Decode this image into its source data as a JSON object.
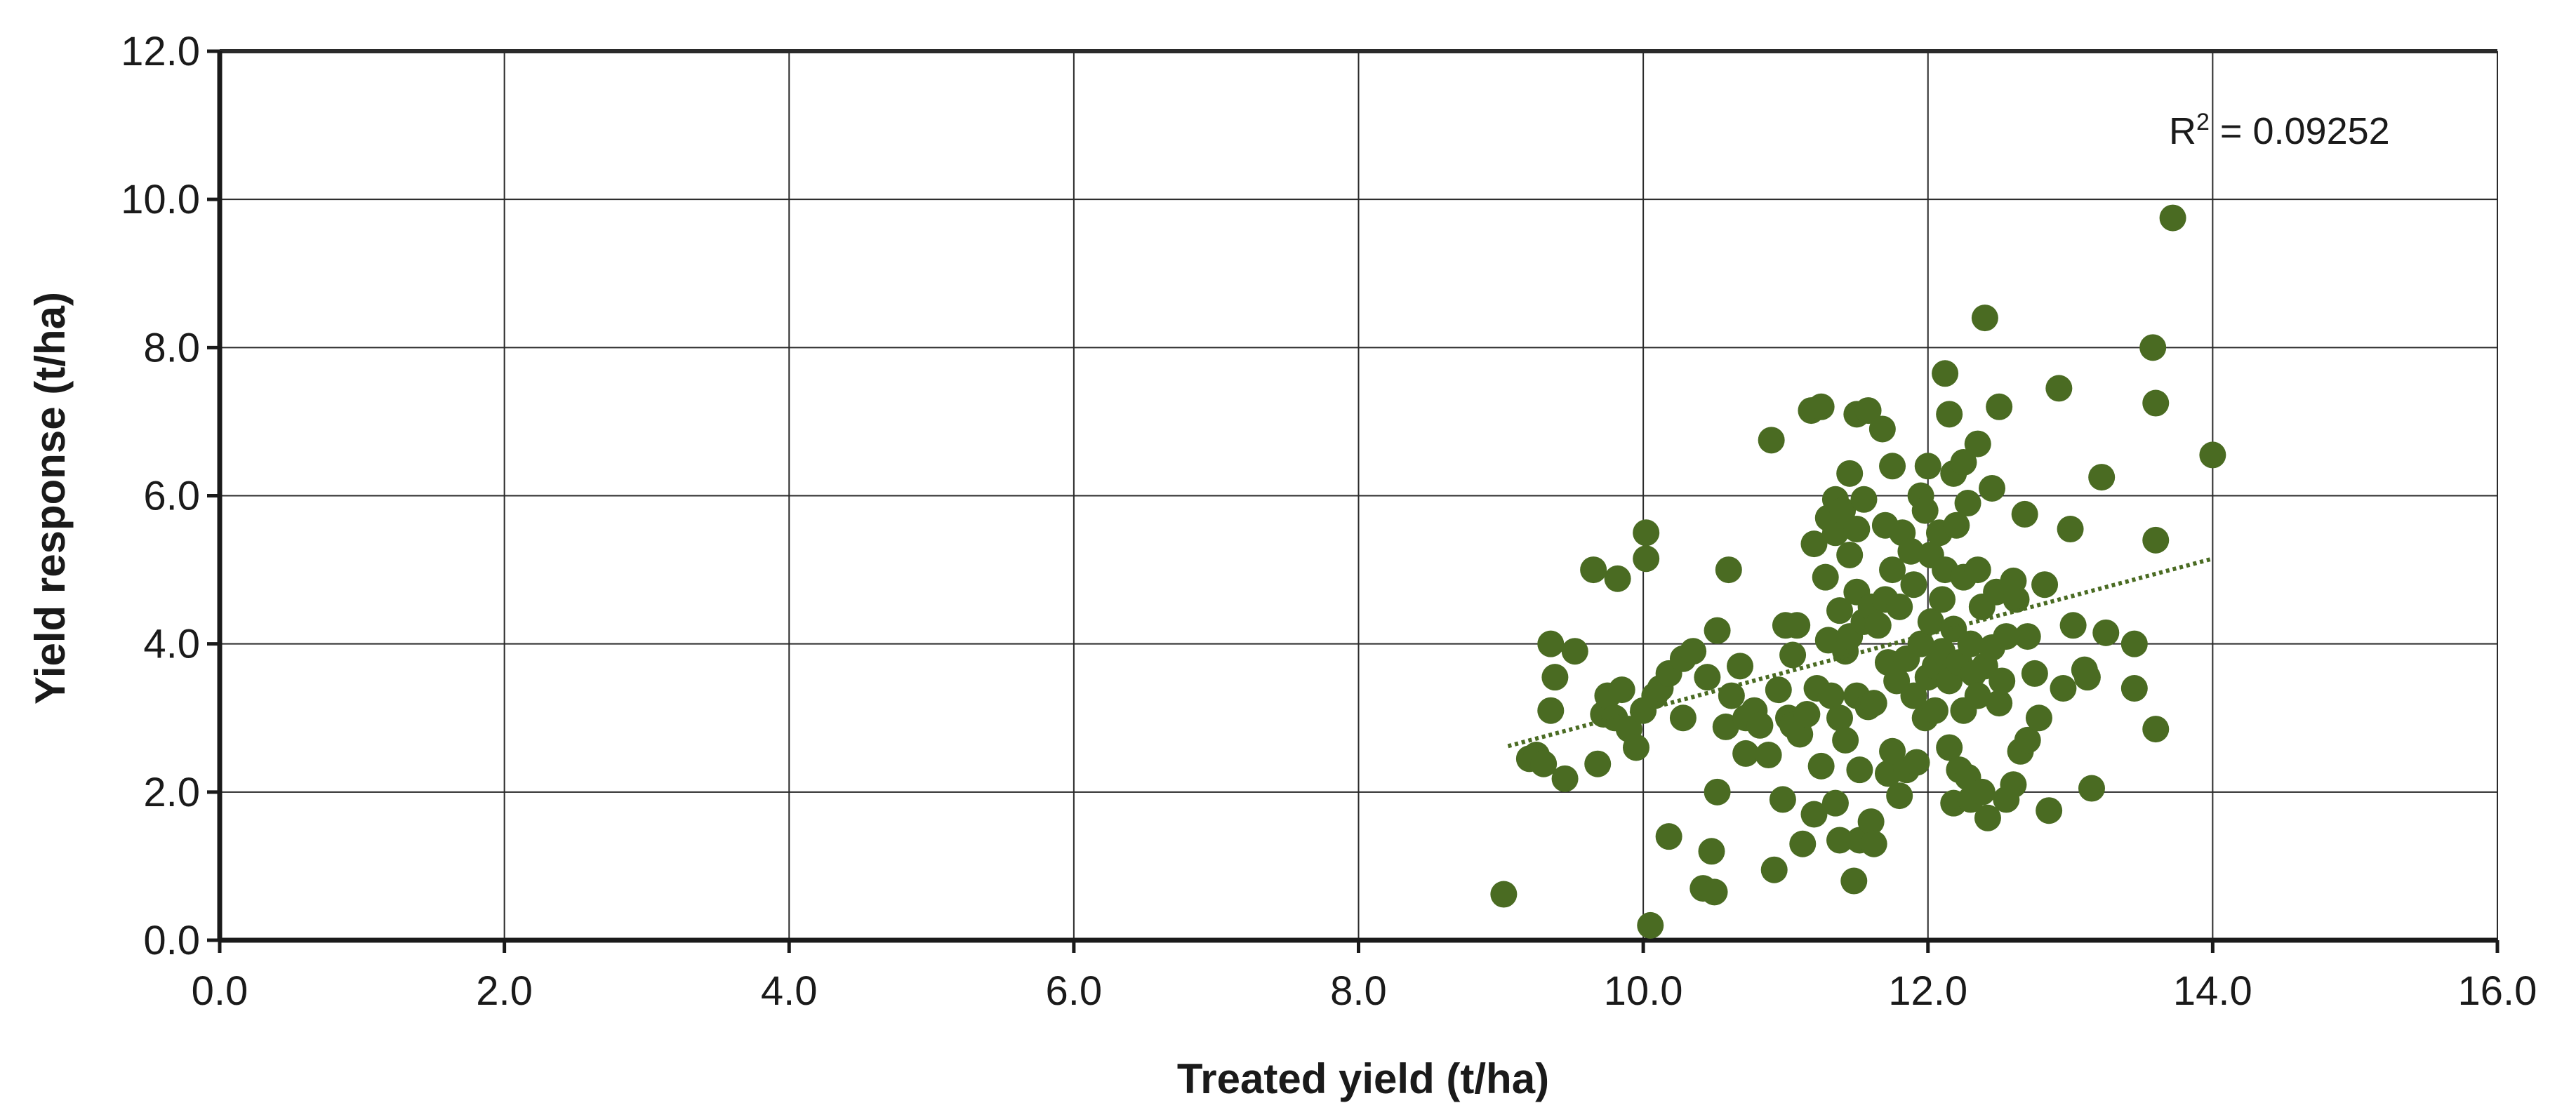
{
  "chart_data": {
    "type": "scatter",
    "title": "",
    "xlabel": "Treated yield (t/ha)",
    "ylabel": "Yield response (t/ha)",
    "xlim": [
      0,
      16
    ],
    "ylim": [
      0,
      12
    ],
    "x_ticks": [
      "0.0",
      "2.0",
      "4.0",
      "6.0",
      "8.0",
      "10.0",
      "12.0",
      "14.0",
      "16.0"
    ],
    "y_ticks": [
      "0.0",
      "2.0",
      "4.0",
      "6.0",
      "8.0",
      "10.0",
      "12.0"
    ],
    "grid": true,
    "marker_color": "#4a6b22",
    "trendline": {
      "style": "dotted",
      "color": "#4a6b22",
      "points": [
        [
          9.05,
          2.62
        ],
        [
          14.0,
          5.15
        ]
      ],
      "r2_prefix": "R",
      "r2_exponent": "2",
      "r2_value": " = 0.09252"
    },
    "points": [
      [
        9.02,
        0.62
      ],
      [
        9.2,
        2.45
      ],
      [
        9.25,
        2.5
      ],
      [
        9.3,
        2.38
      ],
      [
        9.35,
        4.0
      ],
      [
        9.35,
        3.1
      ],
      [
        9.38,
        3.55
      ],
      [
        9.45,
        2.18
      ],
      [
        9.52,
        3.9
      ],
      [
        9.65,
        5.0
      ],
      [
        9.68,
        2.38
      ],
      [
        9.72,
        3.05
      ],
      [
        9.75,
        3.3
      ],
      [
        9.8,
        3.0
      ],
      [
        9.82,
        4.88
      ],
      [
        9.85,
        3.38
      ],
      [
        9.9,
        2.85
      ],
      [
        9.95,
        2.6
      ],
      [
        10.0,
        3.1
      ],
      [
        10.02,
        5.5
      ],
      [
        10.02,
        5.15
      ],
      [
        10.05,
        0.2
      ],
      [
        10.08,
        3.3
      ],
      [
        10.12,
        3.4
      ],
      [
        10.18,
        3.6
      ],
      [
        10.18,
        1.4
      ],
      [
        10.28,
        3.8
      ],
      [
        10.28,
        3.0
      ],
      [
        10.35,
        3.9
      ],
      [
        10.42,
        0.7
      ],
      [
        10.45,
        3.55
      ],
      [
        10.48,
        1.2
      ],
      [
        10.5,
        0.65
      ],
      [
        10.52,
        4.18
      ],
      [
        10.52,
        2.0
      ],
      [
        10.58,
        2.88
      ],
      [
        10.6,
        5.0
      ],
      [
        10.62,
        3.3
      ],
      [
        10.68,
        3.7
      ],
      [
        10.72,
        3.0
      ],
      [
        10.72,
        2.52
      ],
      [
        10.78,
        3.1
      ],
      [
        10.82,
        2.9
      ],
      [
        10.88,
        2.5
      ],
      [
        10.9,
        6.75
      ],
      [
        10.92,
        0.95
      ],
      [
        10.95,
        3.38
      ],
      [
        10.98,
        1.9
      ],
      [
        11.0,
        4.25
      ],
      [
        11.02,
        3.0
      ],
      [
        11.05,
        3.85
      ],
      [
        11.05,
        2.9
      ],
      [
        11.08,
        4.25
      ],
      [
        11.1,
        2.78
      ],
      [
        11.12,
        1.3
      ],
      [
        11.15,
        3.05
      ],
      [
        11.18,
        7.15
      ],
      [
        11.2,
        5.35
      ],
      [
        11.2,
        1.7
      ],
      [
        11.22,
        3.4
      ],
      [
        11.25,
        7.2
      ],
      [
        11.25,
        2.35
      ],
      [
        11.28,
        4.9
      ],
      [
        11.3,
        5.7
      ],
      [
        11.3,
        4.05
      ],
      [
        11.32,
        3.3
      ],
      [
        11.35,
        5.95
      ],
      [
        11.35,
        5.5
      ],
      [
        11.35,
        1.85
      ],
      [
        11.38,
        4.45
      ],
      [
        11.38,
        3.0
      ],
      [
        11.38,
        1.35
      ],
      [
        11.4,
        5.8
      ],
      [
        11.42,
        3.9
      ],
      [
        11.42,
        2.7
      ],
      [
        11.45,
        6.3
      ],
      [
        11.45,
        5.2
      ],
      [
        11.45,
        4.1
      ],
      [
        11.48,
        0.8
      ],
      [
        11.5,
        7.1
      ],
      [
        11.5,
        5.55
      ],
      [
        11.5,
        4.7
      ],
      [
        11.5,
        3.3
      ],
      [
        11.52,
        2.3
      ],
      [
        11.52,
        1.35
      ],
      [
        11.55,
        5.95
      ],
      [
        11.55,
        4.3
      ],
      [
        11.58,
        7.15
      ],
      [
        11.58,
        3.15
      ],
      [
        11.6,
        4.5
      ],
      [
        11.6,
        1.6
      ],
      [
        11.62,
        1.3
      ],
      [
        11.62,
        3.2
      ],
      [
        11.65,
        4.25
      ],
      [
        11.68,
        6.9
      ],
      [
        11.7,
        5.6
      ],
      [
        11.7,
        4.6
      ],
      [
        11.72,
        3.75
      ],
      [
        11.72,
        2.25
      ],
      [
        11.75,
        6.4
      ],
      [
        11.75,
        5.0
      ],
      [
        11.75,
        2.55
      ],
      [
        11.78,
        3.5
      ],
      [
        11.8,
        4.5
      ],
      [
        11.8,
        1.95
      ],
      [
        11.82,
        5.5
      ],
      [
        11.85,
        3.8
      ],
      [
        11.85,
        2.3
      ],
      [
        11.88,
        5.25
      ],
      [
        11.9,
        4.8
      ],
      [
        11.9,
        3.3
      ],
      [
        11.92,
        2.4
      ],
      [
        11.95,
        6.0
      ],
      [
        11.95,
        4.0
      ],
      [
        11.98,
        5.8
      ],
      [
        11.98,
        3.0
      ],
      [
        12.0,
        6.4
      ],
      [
        12.0,
        3.55
      ],
      [
        12.02,
        5.2
      ],
      [
        12.02,
        4.3
      ],
      [
        12.05,
        3.7
      ],
      [
        12.05,
        3.1
      ],
      [
        12.08,
        5.5
      ],
      [
        12.1,
        4.6
      ],
      [
        12.1,
        3.9
      ],
      [
        12.12,
        7.65
      ],
      [
        12.12,
        5.0
      ],
      [
        12.15,
        7.1
      ],
      [
        12.15,
        3.5
      ],
      [
        12.15,
        2.6
      ],
      [
        12.18,
        6.3
      ],
      [
        12.18,
        4.2
      ],
      [
        12.18,
        1.85
      ],
      [
        12.2,
        5.6
      ],
      [
        12.22,
        3.75
      ],
      [
        12.22,
        2.3
      ],
      [
        12.25,
        6.45
      ],
      [
        12.25,
        4.9
      ],
      [
        12.25,
        3.1
      ],
      [
        12.28,
        5.9
      ],
      [
        12.28,
        2.2
      ],
      [
        12.3,
        4.0
      ],
      [
        12.3,
        1.9
      ],
      [
        12.32,
        3.6
      ],
      [
        12.35,
        6.7
      ],
      [
        12.35,
        5.0
      ],
      [
        12.35,
        3.3
      ],
      [
        12.38,
        4.5
      ],
      [
        12.38,
        2.0
      ],
      [
        12.4,
        8.4
      ],
      [
        12.4,
        3.7
      ],
      [
        12.42,
        1.65
      ],
      [
        12.45,
        6.1
      ],
      [
        12.45,
        3.95
      ],
      [
        12.48,
        4.7
      ],
      [
        12.5,
        7.2
      ],
      [
        12.5,
        3.2
      ],
      [
        12.52,
        3.5
      ],
      [
        12.55,
        1.9
      ],
      [
        12.55,
        4.1
      ],
      [
        12.6,
        4.85
      ],
      [
        12.6,
        2.1
      ],
      [
        12.62,
        4.6
      ],
      [
        12.65,
        2.55
      ],
      [
        12.68,
        5.75
      ],
      [
        12.7,
        4.1
      ],
      [
        12.7,
        2.7
      ],
      [
        12.75,
        3.6
      ],
      [
        12.78,
        3.0
      ],
      [
        12.82,
        4.8
      ],
      [
        12.85,
        1.75
      ],
      [
        12.92,
        7.45
      ],
      [
        12.95,
        3.4
      ],
      [
        13.0,
        5.55
      ],
      [
        13.02,
        4.25
      ],
      [
        13.1,
        3.65
      ],
      [
        13.12,
        3.55
      ],
      [
        13.15,
        2.05
      ],
      [
        13.22,
        6.25
      ],
      [
        13.25,
        4.15
      ],
      [
        13.45,
        4.0
      ],
      [
        13.45,
        3.4
      ],
      [
        13.58,
        8.0
      ],
      [
        13.6,
        7.25
      ],
      [
        13.6,
        5.4
      ],
      [
        13.6,
        2.85
      ],
      [
        13.72,
        9.75
      ],
      [
        14.0,
        6.55
      ]
    ]
  }
}
